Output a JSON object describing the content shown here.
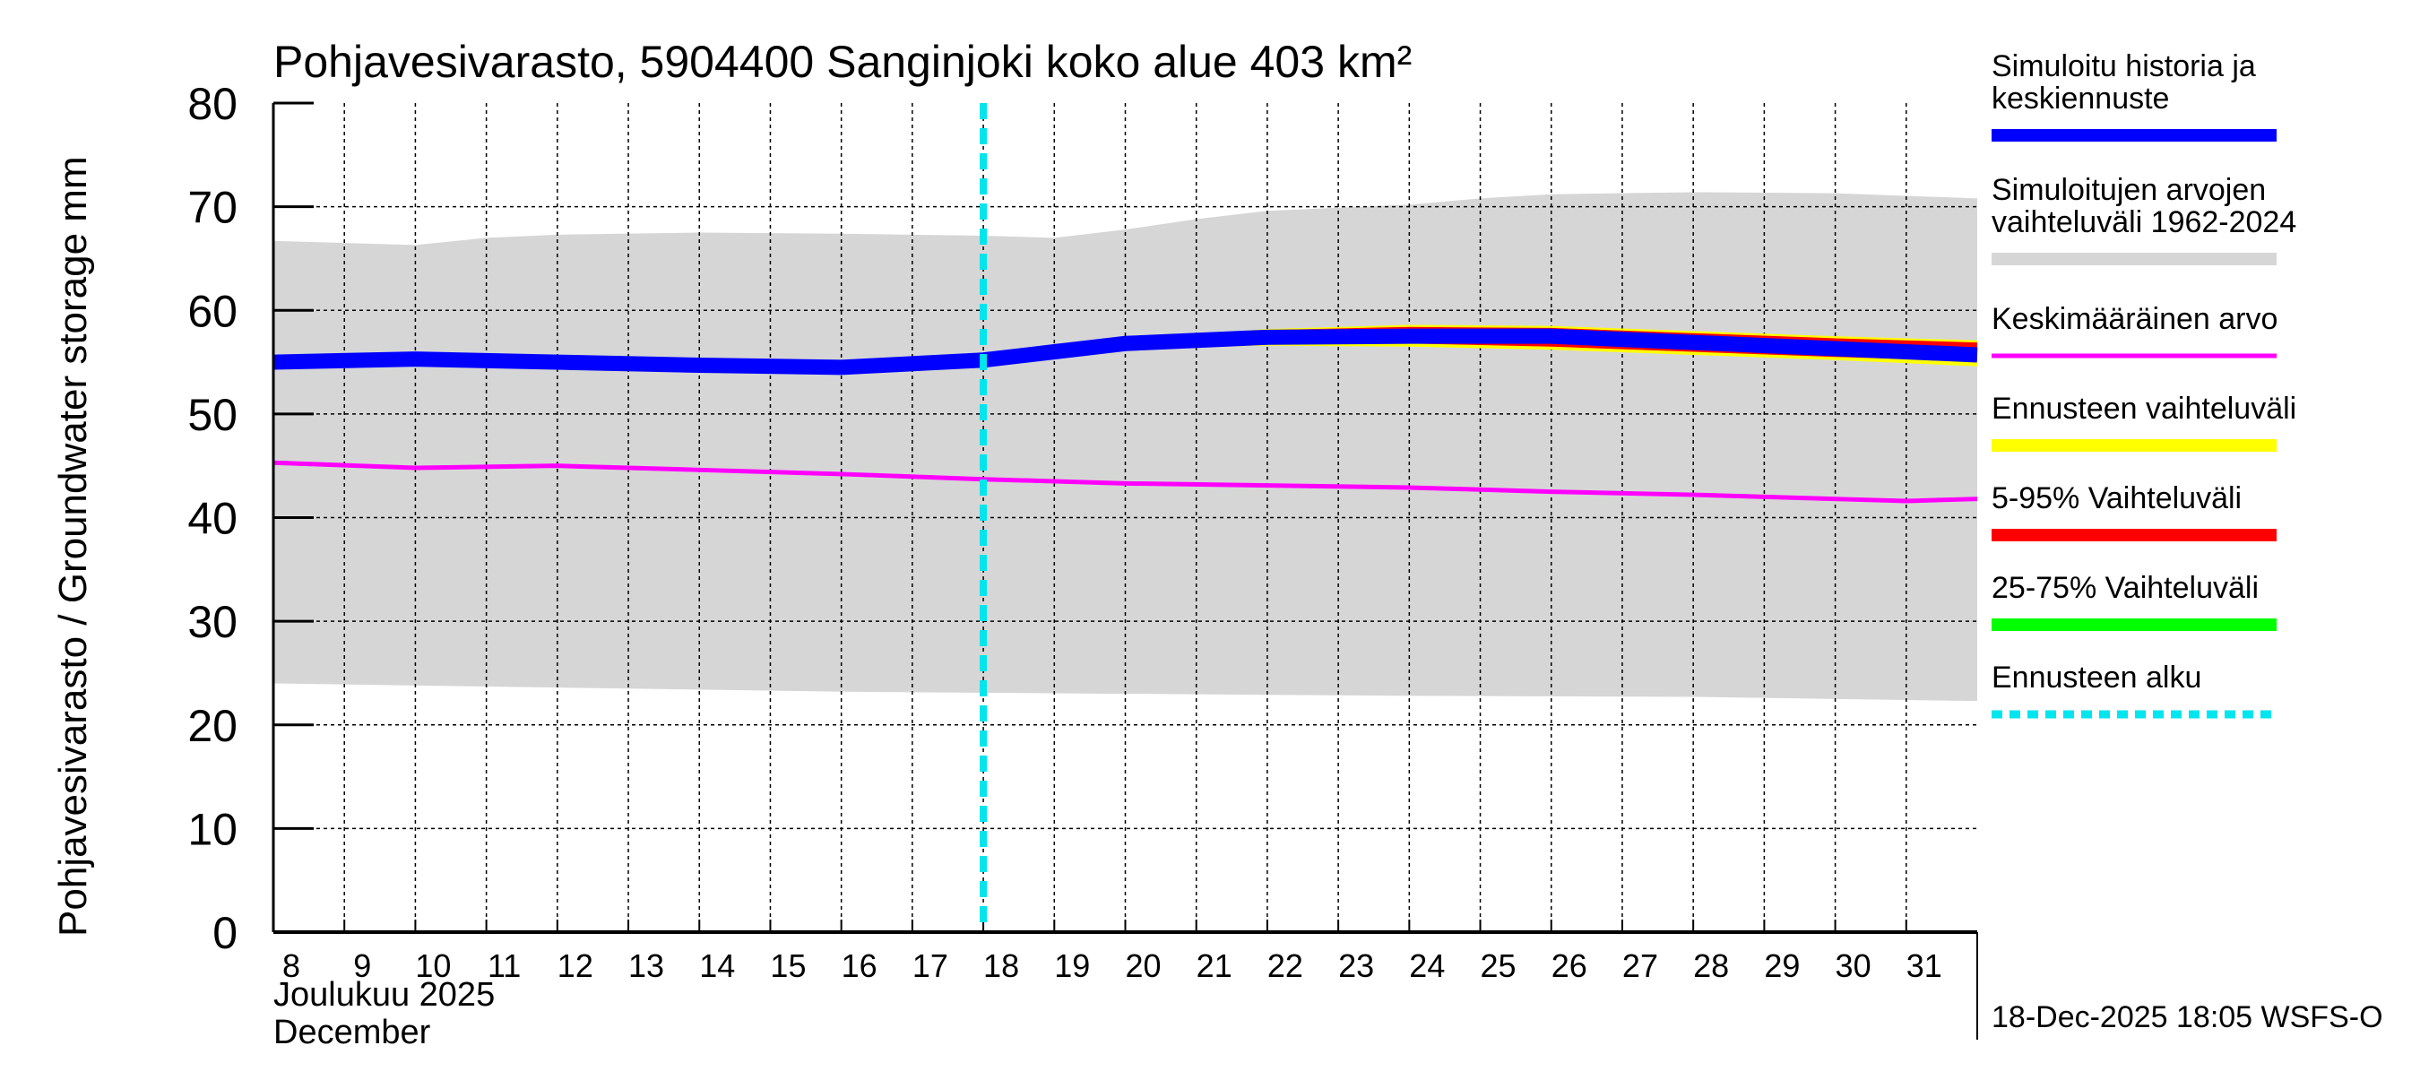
{
  "chart_data": {
    "type": "area",
    "title": "Pohjavesivarasto, 5904400 Sanginjoki koko alue 403 km²",
    "ylabel": "Pohjavesivarasto / Groundwater storage   mm",
    "xlabel_fi": "Joulukuu  2025",
    "xlabel_en": "December",
    "ylim": [
      0,
      80
    ],
    "yticks": [
      0,
      10,
      20,
      30,
      40,
      50,
      60,
      70,
      80
    ],
    "xtick_labels": [
      "8",
      "9",
      "10",
      "11",
      "12",
      "13",
      "14",
      "15",
      "16",
      "17",
      "18",
      "19",
      "20",
      "21",
      "22",
      "23",
      "24",
      "25",
      "26",
      "27",
      "28",
      "29",
      "30",
      "31"
    ],
    "forecast_start_day": 10,
    "footer": "18-Dec-2025 18:05 WSFS-O",
    "colors": {
      "sim": "#0000ff",
      "range": "#d6d6d6",
      "mean": "#ff00ff",
      "forecast": "#ffff00",
      "p5_95": "#ff0000",
      "p25_75": "#00ff00",
      "start": "#00e5ee"
    },
    "series": {
      "range_upper": {
        "t": [
          0,
          2,
          3,
          4,
          6,
          8,
          10,
          11,
          12,
          13,
          14,
          16,
          17,
          18,
          20,
          22,
          24
        ],
        "v": [
          66.7,
          66.3,
          67,
          67.3,
          67.5,
          67.4,
          67.2,
          67,
          67.8,
          68.8,
          69.6,
          70.2,
          70.8,
          71.2,
          71.4,
          71.3,
          70.8
        ]
      },
      "range_lower": {
        "t": [
          0,
          4,
          8,
          12,
          16,
          20,
          24
        ],
        "v": [
          24,
          23.6,
          23.2,
          23,
          22.8,
          22.7,
          22.3
        ]
      },
      "mean": {
        "t": [
          0,
          2,
          4,
          6,
          8,
          10,
          12,
          14,
          16,
          18,
          20,
          22,
          23,
          24
        ],
        "v": [
          45.3,
          44.8,
          45,
          44.6,
          44.2,
          43.7,
          43.3,
          43.1,
          42.9,
          42.5,
          42.2,
          41.8,
          41.6,
          41.8
        ]
      },
      "forecast_upper": {
        "t": [
          10,
          12,
          14,
          16,
          18,
          20,
          22,
          24
        ],
        "v": [
          55.5,
          57.2,
          58.2,
          58.6,
          58.5,
          58,
          57.5,
          57.1
        ]
      },
      "forecast_lower": {
        "t": [
          10,
          12,
          14,
          16,
          18,
          20,
          22,
          24
        ],
        "v": [
          55,
          56.3,
          56.6,
          56.5,
          56.2,
          55.7,
          55.2,
          54.6
        ]
      },
      "p95": {
        "t": [
          10,
          12,
          14,
          16,
          18,
          20,
          22,
          24
        ],
        "v": [
          55.4,
          57.1,
          58.1,
          58.4,
          58.3,
          57.8,
          57.3,
          56.9
        ]
      },
      "p5": {
        "t": [
          10,
          12,
          14,
          16,
          18,
          20,
          22,
          24
        ],
        "v": [
          55.1,
          56.5,
          56.8,
          56.8,
          56.5,
          56,
          55.5,
          55.1
        ]
      },
      "sim": {
        "t": [
          0,
          2,
          4,
          6,
          8,
          10,
          11,
          12,
          14,
          16,
          18,
          20,
          22,
          24
        ],
        "v": [
          55,
          55.3,
          55,
          54.7,
          54.5,
          55.2,
          56,
          56.8,
          57.4,
          57.5,
          57.5,
          56.9,
          56.3,
          55.7
        ]
      }
    },
    "legend": [
      {
        "label": "Simuloitu historia ja",
        "label2": "keskiennuste",
        "key": "sim",
        "style": "thick"
      },
      {
        "label": "Simuloitujen arvojen",
        "label2": "vaihteluväli 1962-2024",
        "key": "range",
        "style": "thick"
      },
      {
        "label": "Keskimääräinen arvo",
        "label2": "",
        "key": "mean",
        "style": "thin"
      },
      {
        "label": "Ennusteen vaihteluväli",
        "label2": "",
        "key": "forecast",
        "style": "thick"
      },
      {
        "label": "5-95% Vaihteluväli",
        "label2": "",
        "key": "p5_95",
        "style": "thick"
      },
      {
        "label": "25-75% Vaihteluväli",
        "label2": "",
        "key": "p25_75",
        "style": "thick"
      },
      {
        "label": "Ennusteen alku",
        "label2": "",
        "key": "start",
        "style": "dashed"
      }
    ],
    "legend_placement": "right"
  }
}
